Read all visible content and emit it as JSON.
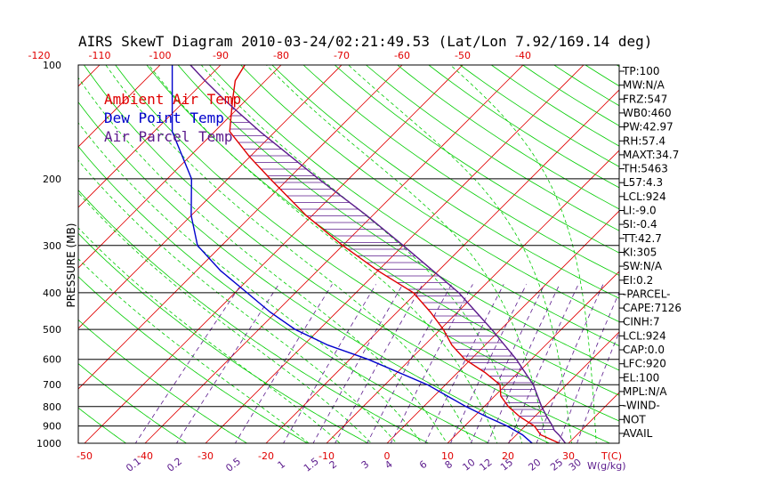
{
  "chart_data": {
    "type": "skewt",
    "title": "AIRS SkewT Diagram 2010-03-24/02:21:49.53 (Lat/Lon 7.92/169.14 deg)",
    "ylabel": "PRESSURE (MB)",
    "xlabel": "T(C)",
    "mixing_ratio_label": "W(g/kg)",
    "pressure_range": [
      1000,
      100
    ],
    "pressure_ticks": [
      100,
      200,
      300,
      400,
      500,
      600,
      700,
      800,
      900,
      1000
    ],
    "pressure_tick_labels": [
      "100",
      "200",
      "300",
      "400",
      "500",
      "600",
      "700",
      "800",
      "900",
      "1000"
    ],
    "top_temp_ticks": [
      -120,
      -110,
      -100,
      -90,
      -80,
      -70,
      -60,
      -50,
      -40
    ],
    "top_temp_labels": [
      "-120",
      "-110",
      "-100",
      "-90",
      "-80",
      "-70",
      "-60",
      "-50",
      "-40"
    ],
    "bottom_temp_ticks": [
      -50,
      -40,
      -30,
      -20,
      -10,
      0,
      10,
      20,
      30
    ],
    "bottom_temp_labels": [
      "-50",
      "-40",
      "-30",
      "-20",
      "-10",
      "0",
      "10",
      "20",
      "30"
    ],
    "mixing_ratios": [
      0.1,
      0.2,
      0.5,
      1,
      1.5,
      2,
      3,
      4,
      6,
      8,
      10,
      12,
      15,
      20,
      25,
      30
    ],
    "mixing_ratio_labels": [
      "0.1",
      "0.2",
      "0.5",
      "1",
      "1.5",
      "2",
      "3",
      "4",
      "6",
      "8",
      "10",
      "12",
      "15",
      "20",
      "25",
      "30"
    ],
    "legend": [
      {
        "label": "Ambient Air Temp",
        "color": "#e00000"
      },
      {
        "label": "Dew Point Temp",
        "color": "#0000cc"
      },
      {
        "label": "Air Parcel Temp",
        "color": "#5b1a8c"
      }
    ],
    "series": [
      {
        "name": "Ambient Air Temp",
        "color": "#e00000",
        "points": [
          {
            "p": 1000,
            "t": 28.5
          },
          {
            "p": 950,
            "t": 24.0
          },
          {
            "p": 900,
            "t": 21.5
          },
          {
            "p": 850,
            "t": 17.5
          },
          {
            "p": 800,
            "t": 14.0
          },
          {
            "p": 750,
            "t": 11.0
          },
          {
            "p": 700,
            "t": 9.0
          },
          {
            "p": 650,
            "t": 4.5
          },
          {
            "p": 600,
            "t": -1.0
          },
          {
            "p": 550,
            "t": -5.5
          },
          {
            "p": 500,
            "t": -9.5
          },
          {
            "p": 450,
            "t": -14.5
          },
          {
            "p": 400,
            "t": -20.5
          },
          {
            "p": 350,
            "t": -30.0
          },
          {
            "p": 300,
            "t": -40.0
          },
          {
            "p": 250,
            "t": -51.0
          },
          {
            "p": 200,
            "t": -63.0
          },
          {
            "p": 175,
            "t": -70.0
          },
          {
            "p": 150,
            "t": -77.5
          },
          {
            "p": 125,
            "t": -82.0
          },
          {
            "p": 110,
            "t": -85.0
          },
          {
            "p": 100,
            "t": -86.0
          }
        ]
      },
      {
        "name": "Dew Point Temp",
        "color": "#0000cc",
        "points": [
          {
            "p": 1000,
            "t": 24.0
          },
          {
            "p": 950,
            "t": 21.0
          },
          {
            "p": 900,
            "t": 17.0
          },
          {
            "p": 850,
            "t": 12.0
          },
          {
            "p": 800,
            "t": 7.0
          },
          {
            "p": 700,
            "t": -3.0
          },
          {
            "p": 600,
            "t": -17.0
          },
          {
            "p": 550,
            "t": -26.0
          },
          {
            "p": 500,
            "t": -34.0
          },
          {
            "p": 450,
            "t": -41.0
          },
          {
            "p": 400,
            "t": -48.0
          },
          {
            "p": 350,
            "t": -56.0
          },
          {
            "p": 300,
            "t": -64.0
          },
          {
            "p": 250,
            "t": -70.0
          },
          {
            "p": 200,
            "t": -76.0
          },
          {
            "p": 150,
            "t": -87.0
          },
          {
            "p": 100,
            "t": -98.0
          }
        ]
      },
      {
        "name": "Air Parcel Temp",
        "color": "#5b1a8c",
        "points": [
          {
            "p": 1000,
            "t": 29.5
          },
          {
            "p": 950,
            "t": 27.0
          },
          {
            "p": 924,
            "t": 25.5
          },
          {
            "p": 900,
            "t": 24.5
          },
          {
            "p": 850,
            "t": 22.0
          },
          {
            "p": 800,
            "t": 19.5
          },
          {
            "p": 700,
            "t": 14.5
          },
          {
            "p": 600,
            "t": 7.5
          },
          {
            "p": 500,
            "t": -1.5
          },
          {
            "p": 400,
            "t": -13.0
          },
          {
            "p": 300,
            "t": -30.0
          },
          {
            "p": 250,
            "t": -41.0
          },
          {
            "p": 200,
            "t": -55.0
          },
          {
            "p": 150,
            "t": -72.5
          },
          {
            "p": 125,
            "t": -83.0
          },
          {
            "p": 110,
            "t": -90.0
          },
          {
            "p": 100,
            "t": -95.0
          }
        ]
      }
    ],
    "stats": [
      "TP:100",
      "MW:N/A",
      "FRZ:547",
      "WB0:460",
      "PW:42.97",
      "RH:57.4",
      "MAXT:34.7",
      "TH:5463",
      "L57:4.3",
      "LCL:924",
      "LI:-9.0",
      "SI:-0.4",
      "TT:42.7",
      "KI:305",
      "SW:N/A",
      "EI:0.2",
      "-PARCEL-",
      "CAPE:7126",
      "CINH:7",
      "LCL:924",
      "CAP:0.0",
      "LFC:920",
      "EL:100",
      "MPL:N/A",
      "-WIND-",
      "NOT",
      "AVAIL"
    ]
  },
  "colors": {
    "isotherm": "#e00000",
    "dry_adiabat": "#00cc00",
    "moist_adiabat": "#00cc00",
    "mixing_ratio": "#5b1a8c",
    "isobar": "#000000",
    "temp_label": "#e00000",
    "mixing_label": "#5b1a8c"
  }
}
